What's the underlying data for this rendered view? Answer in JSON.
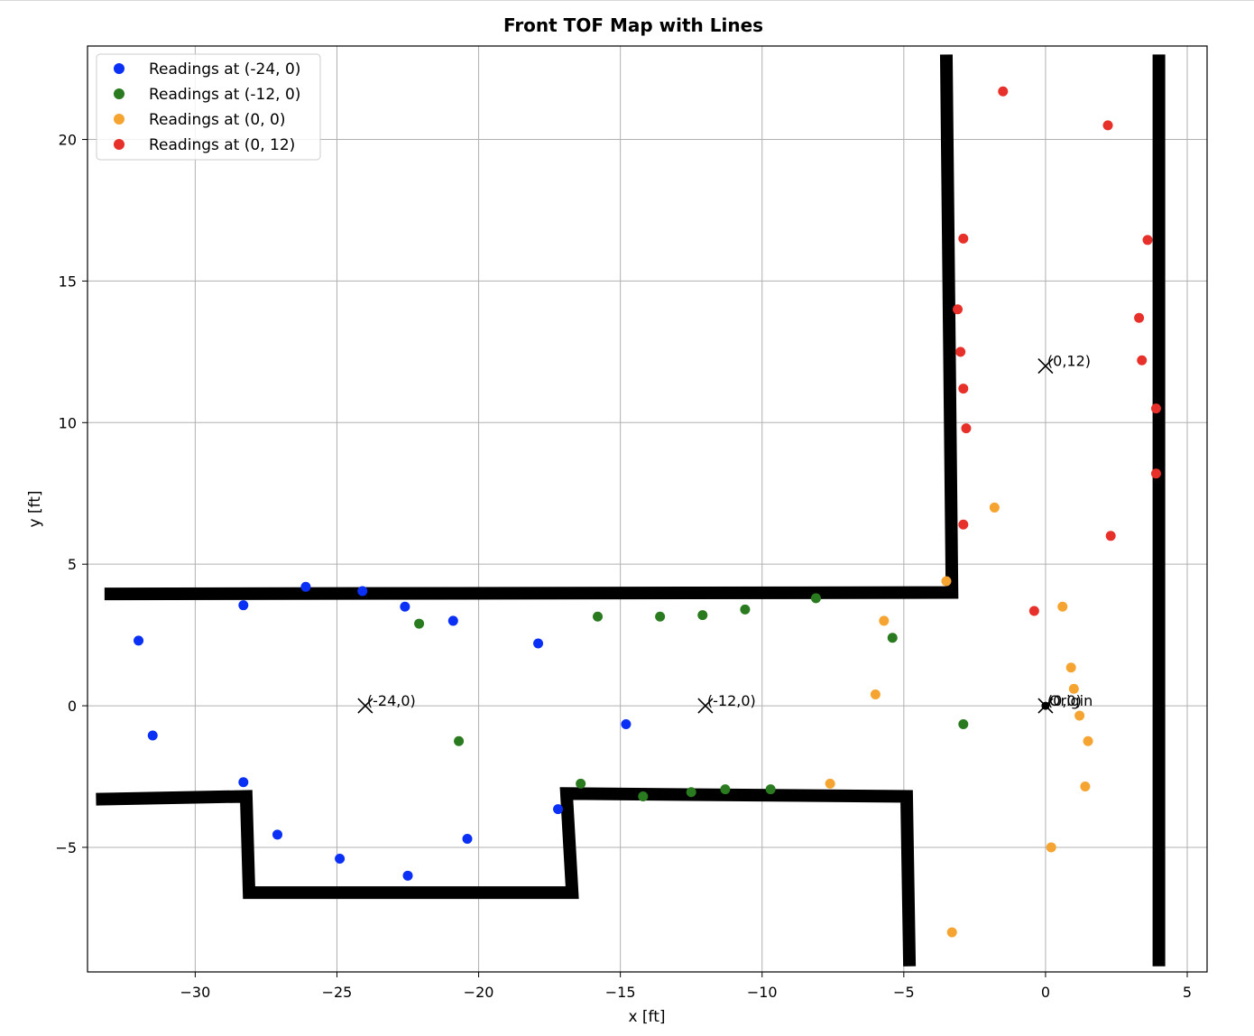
{
  "chart_data": {
    "type": "scatter",
    "title": "Front TOF Map with Lines",
    "xlabel": "x [ft]",
    "ylabel": "y [ft]",
    "xlim": [
      -33.8,
      5.7
    ],
    "ylim": [
      -9.4,
      23.3
    ],
    "xticks": [
      -30,
      -25,
      -20,
      -15,
      -10,
      -5,
      0,
      5
    ],
    "yticks": [
      -5,
      0,
      5,
      10,
      15,
      20
    ],
    "xtick_labels": [
      "−30",
      "−25",
      "−20",
      "−15",
      "−10",
      "−5",
      "0",
      "5"
    ],
    "ytick_labels": [
      "−5",
      "0",
      "5",
      "10",
      "15",
      "20"
    ],
    "grid": true,
    "legend_position": "top-left",
    "series": [
      {
        "name": "Readings at (-24, 0)",
        "color": "#0a2ff5",
        "points": [
          [
            -32.0,
            2.3
          ],
          [
            -31.5,
            -1.05
          ],
          [
            -28.3,
            3.55
          ],
          [
            -26.1,
            4.2
          ],
          [
            -24.1,
            4.05
          ],
          [
            -22.6,
            3.5
          ],
          [
            -20.9,
            3.0
          ],
          [
            -17.9,
            2.2
          ],
          [
            -28.3,
            -2.7
          ],
          [
            -27.1,
            -4.55
          ],
          [
            -24.9,
            -5.4
          ],
          [
            -22.5,
            -6.0
          ],
          [
            -20.4,
            -4.7
          ],
          [
            -17.2,
            -3.65
          ],
          [
            -14.8,
            -0.65
          ]
        ]
      },
      {
        "name": "Readings at (-12, 0)",
        "color": "#2a7a1f",
        "points": [
          [
            -22.1,
            2.9
          ],
          [
            -20.7,
            -1.25
          ],
          [
            -15.8,
            3.15
          ],
          [
            -13.6,
            3.15
          ],
          [
            -12.1,
            3.2
          ],
          [
            -10.6,
            3.4
          ],
          [
            -8.1,
            3.8
          ],
          [
            -5.4,
            2.4
          ],
          [
            -2.9,
            -0.65
          ],
          [
            -16.4,
            -2.75
          ],
          [
            -14.2,
            -3.2
          ],
          [
            -12.5,
            -3.05
          ],
          [
            -11.3,
            -2.95
          ],
          [
            -9.7,
            -2.95
          ]
        ]
      },
      {
        "name": "Readings at (0, 0)",
        "color": "#f5a431",
        "points": [
          [
            -5.7,
            3.0
          ],
          [
            -6.0,
            0.4
          ],
          [
            -7.6,
            -2.75
          ],
          [
            -3.5,
            4.4
          ],
          [
            -1.8,
            7.0
          ],
          [
            0.6,
            3.5
          ],
          [
            0.9,
            1.35
          ],
          [
            1.0,
            0.6
          ],
          [
            1.2,
            -0.35
          ],
          [
            1.5,
            -1.25
          ],
          [
            1.4,
            -2.85
          ],
          [
            0.2,
            -5.0
          ],
          [
            -3.3,
            -8.0
          ]
        ]
      },
      {
        "name": "Readings at (0, 12)",
        "color": "#e8302a",
        "points": [
          [
            -1.5,
            21.7
          ],
          [
            2.2,
            20.5
          ],
          [
            -2.9,
            16.5
          ],
          [
            3.6,
            16.45
          ],
          [
            -3.1,
            14.0
          ],
          [
            3.3,
            13.7
          ],
          [
            -3.0,
            12.5
          ],
          [
            3.4,
            12.2
          ],
          [
            -2.9,
            11.2
          ],
          [
            3.9,
            10.5
          ],
          [
            -2.8,
            9.8
          ],
          [
            3.9,
            8.2
          ],
          [
            -2.9,
            6.4
          ],
          [
            2.3,
            6.0
          ],
          [
            -0.4,
            3.35
          ]
        ]
      }
    ],
    "walls": [
      [
        [
          -33.2,
          3.95
        ],
        [
          -3.3,
          4.0
        ],
        [
          -3.5,
          23.0
        ]
      ],
      [
        [
          4.0,
          23.0
        ],
        [
          4.0,
          -9.2
        ]
      ],
      [
        [
          -33.5,
          -3.3
        ],
        [
          -28.2,
          -3.2
        ],
        [
          -28.1,
          -6.6
        ],
        [
          -16.7,
          -6.6
        ],
        [
          -16.9,
          -3.1
        ],
        [
          -4.9,
          -3.2
        ],
        [
          -4.8,
          -9.2
        ]
      ]
    ],
    "markers": [
      {
        "label": "(-24,0)",
        "x": -24,
        "y": 0
      },
      {
        "label": "(-12,0)",
        "x": -12,
        "y": 0
      },
      {
        "label": "(0,12)",
        "x": 0,
        "y": 12
      },
      {
        "label": "(0,0)",
        "x": 0,
        "y": 0
      }
    ],
    "origin_label": "Origin"
  }
}
